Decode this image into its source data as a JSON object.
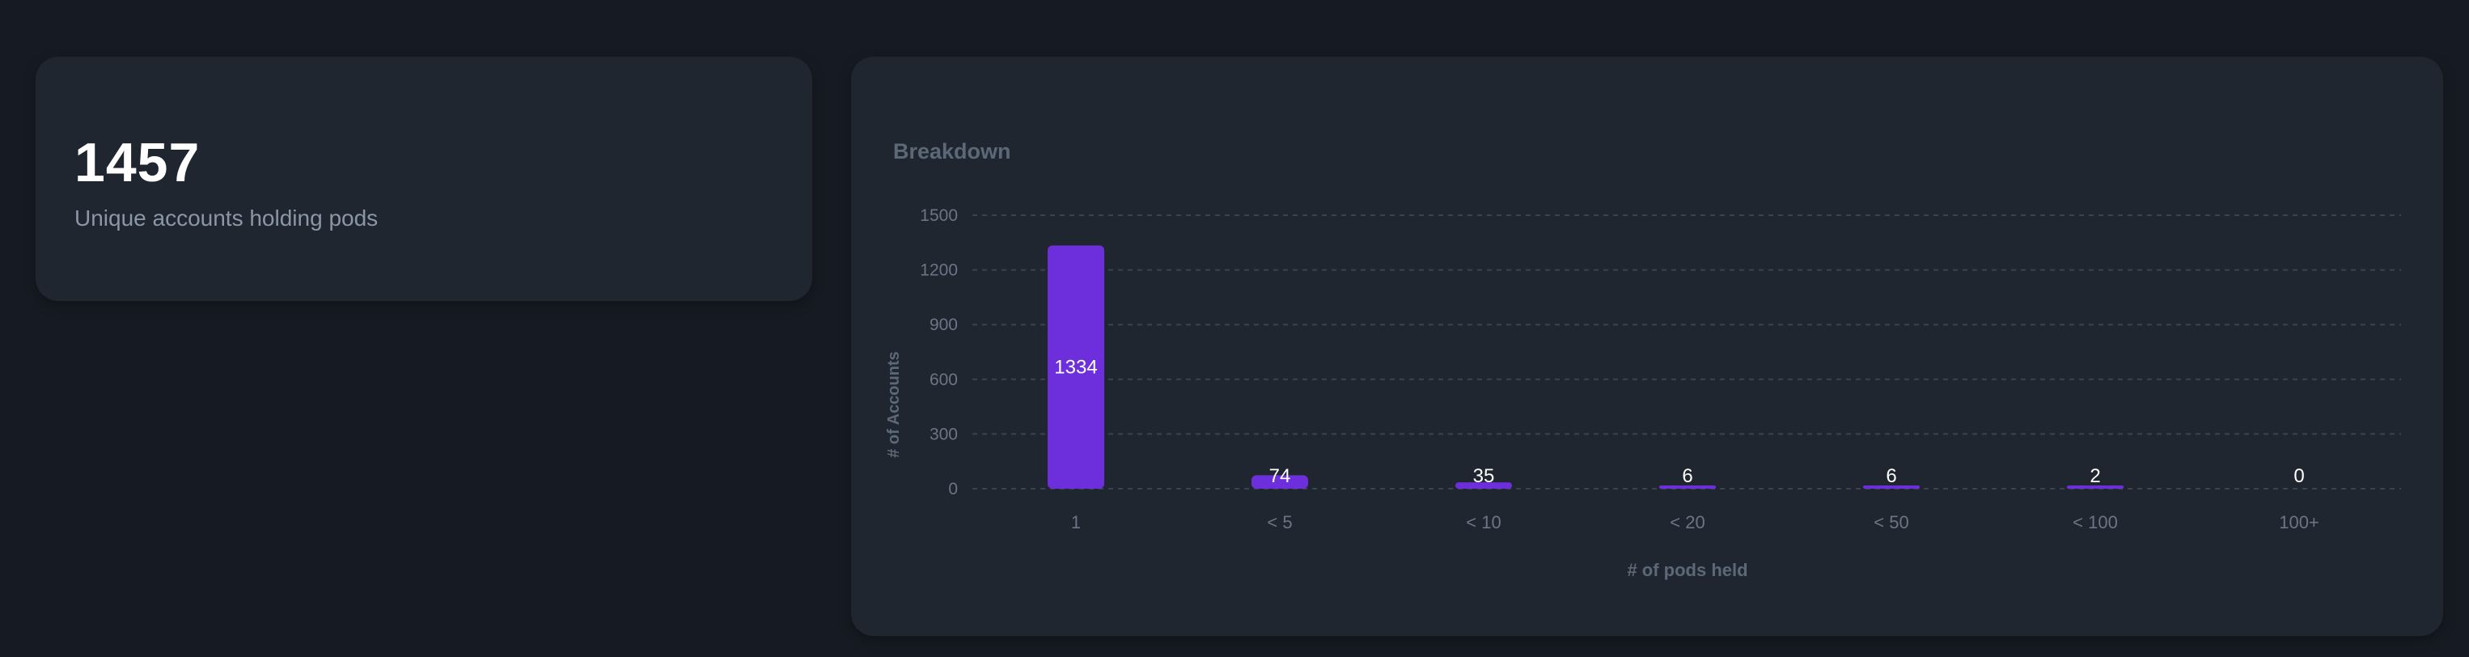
{
  "stat": {
    "value": "1457",
    "label": "Unique accounts holding pods"
  },
  "colors": {
    "background": "#161a22",
    "card": "#1f2630",
    "bar": "#6d2edb",
    "grid": "#3a4350",
    "axis_text": "#6b7585"
  },
  "chart_data": {
    "type": "bar",
    "title": "Breakdown",
    "xlabel": "# of pods held",
    "ylabel": "# of Accounts",
    "categories": [
      "1",
      "< 5",
      "< 10",
      "< 20",
      "< 50",
      "< 100",
      "100+"
    ],
    "values": [
      1334,
      74,
      35,
      6,
      6,
      2,
      0
    ],
    "data_labels": [
      "1334",
      "74",
      "35",
      "6",
      "6",
      "2",
      "0"
    ],
    "yticks": [
      0,
      300,
      600,
      900,
      1200,
      1500
    ],
    "ylim": [
      0,
      1500
    ],
    "grid": true,
    "legend": "none"
  }
}
